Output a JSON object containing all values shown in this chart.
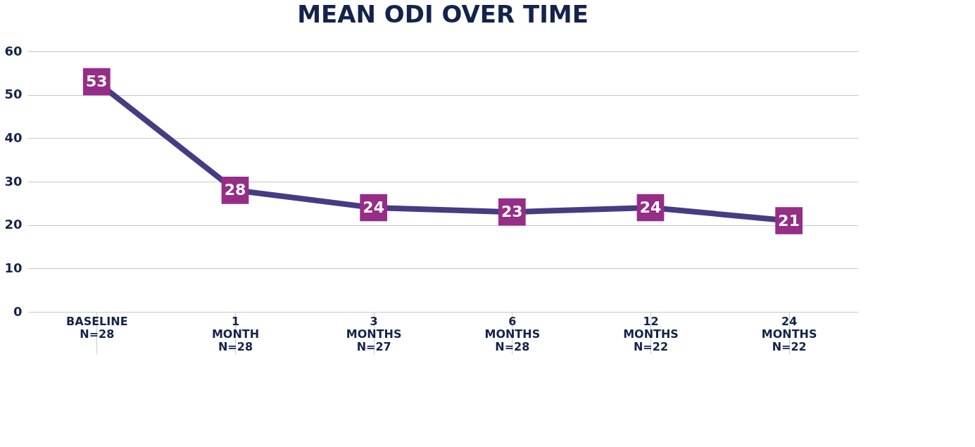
{
  "chart_data": {
    "type": "line",
    "title": "MEAN ODI OVER TIME",
    "categories": [
      "BASELINE\nN=28",
      "1\nMONTH\nN=28",
      "3\nMONTHS\nN=27",
      "6\nMONTHS\nN=28",
      "12\nMONTHS\nN=22",
      "24\nMONTHS\nN=22"
    ],
    "series": [
      {
        "color": "#463c84",
        "colors": [
          "#962d86",
          "#962d86",
          "#962d86",
          "#962d86",
          "#962d86",
          "#962d86"
        ],
        "values": [
          53,
          28,
          24,
          23,
          24,
          21
        ]
      }
    ],
    "ylim": [
      0,
      60
    ],
    "yticks": [
      0,
      10,
      20,
      30,
      40,
      50,
      60
    ],
    "grid": "y",
    "marker": "square",
    "line_style": "solid",
    "data_labels": true
  }
}
